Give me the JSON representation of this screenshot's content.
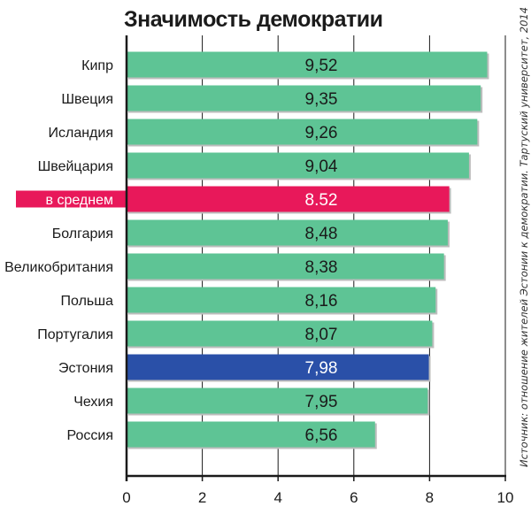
{
  "chart_data": {
    "type": "bar",
    "orientation": "horizontal",
    "title": "Значимость демократии",
    "source": "Источник: отношение жителей Эстонии к демократии. Тартуский университет, 2014",
    "categories": [
      "Кипр",
      "Швеция",
      "Исландия",
      "Швейцария",
      "в среднем",
      "Болгария",
      "Великобритания",
      "Польша",
      "Португалия",
      "Эстония",
      "Чехия",
      "Россия"
    ],
    "values": [
      9.52,
      9.35,
      9.26,
      9.04,
      8.52,
      8.48,
      8.38,
      8.16,
      8.07,
      7.98,
      7.95,
      6.56
    ],
    "value_labels": [
      "9,52",
      "9,35",
      "9,26",
      "9,04",
      "8.52",
      "8,48",
      "8,38",
      "8,16",
      "8,07",
      "7,98",
      "7,95",
      "6,56"
    ],
    "highlight": {
      "в среднем": "average",
      "Эстония": "estonia"
    },
    "xlim": [
      0,
      10
    ],
    "xticks": [
      0,
      2,
      4,
      6,
      8,
      10
    ],
    "xtick_labels": [
      "0",
      "2",
      "4",
      "6",
      "8",
      "10"
    ],
    "grid": true,
    "colors": {
      "bar": "#5ec495",
      "average": "#e8185a",
      "estonia": "#2a50a8",
      "axis": "#1a1a1a",
      "grid": "#1a1a1a"
    }
  }
}
